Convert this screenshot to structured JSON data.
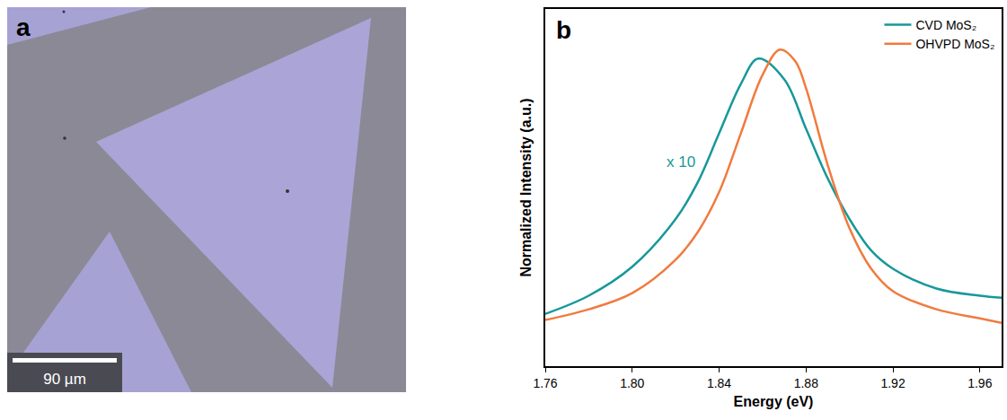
{
  "image_panel": {
    "label": "a",
    "scale_bar": "90 µm"
  },
  "chart_data": {
    "type": "line",
    "panel_label": "b",
    "x_label": "Energy (eV)",
    "y_label": "Normalized Intensity (a.u.)",
    "xlim": [
      1.76,
      1.97
    ],
    "xticks": [
      1.76,
      {
        "value": 1.8,
        "label": "1.80"
      },
      1.84,
      1.88,
      1.92,
      1.96
    ],
    "ylim": [
      0,
      1.1
    ],
    "yticks": [],
    "tick_labels": "x",
    "grid": false,
    "legend": "top right",
    "annotations": [
      {
        "text": "x 10",
        "x": 1.815,
        "y": 0.63,
        "color": "#17989a"
      }
    ],
    "series": [
      {
        "name": "CVD MoS₂",
        "color": "#17989a",
        "x": [
          1.76,
          1.78,
          1.8,
          1.82,
          1.83,
          1.84,
          1.85,
          1.858,
          1.87,
          1.88,
          1.89,
          1.9,
          1.91,
          1.92,
          1.94,
          1.96,
          1.97
        ],
        "values": [
          0.161,
          0.217,
          0.306,
          0.453,
          0.564,
          0.717,
          0.869,
          0.947,
          0.883,
          0.731,
          0.578,
          0.453,
          0.356,
          0.3,
          0.239,
          0.217,
          0.211
        ]
      },
      {
        "name": "OHVPD MoS₂",
        "color": "#f07b3f",
        "x": [
          1.76,
          1.78,
          1.8,
          1.82,
          1.83,
          1.84,
          1.85,
          1.86,
          1.868,
          1.875,
          1.88,
          1.89,
          1.9,
          1.91,
          1.92,
          1.94,
          1.96,
          1.97
        ],
        "values": [
          0.142,
          0.175,
          0.225,
          0.328,
          0.411,
          0.536,
          0.717,
          0.897,
          0.975,
          0.94,
          0.856,
          0.619,
          0.425,
          0.3,
          0.231,
          0.175,
          0.147,
          0.133
        ]
      }
    ]
  }
}
